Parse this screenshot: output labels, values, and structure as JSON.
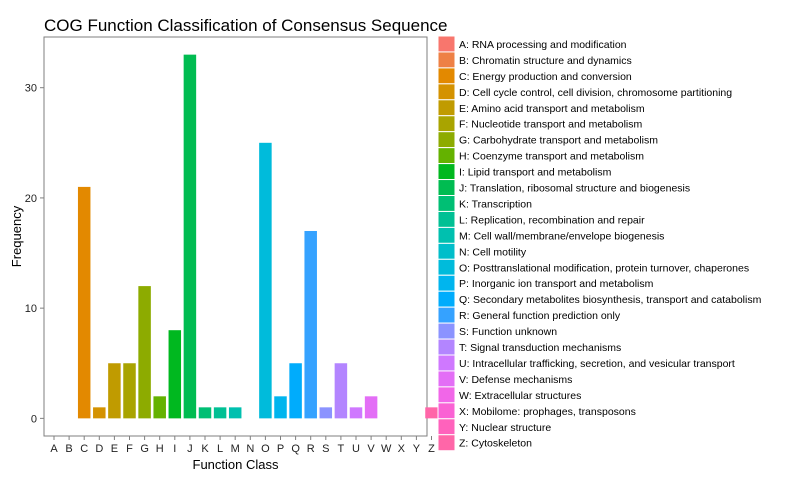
{
  "chart_data": {
    "type": "bar",
    "title": "COG Function Classification of Consensus Sequence",
    "xlabel": "Function Class",
    "ylabel": "Frequency",
    "ylim": [
      -1.6,
      34.6
    ],
    "yticks": [
      0,
      10,
      20,
      30
    ],
    "grid": false,
    "legend_position": "right",
    "categories": [
      "A",
      "B",
      "C",
      "D",
      "E",
      "F",
      "G",
      "H",
      "I",
      "J",
      "K",
      "L",
      "M",
      "N",
      "O",
      "P",
      "Q",
      "R",
      "S",
      "T",
      "U",
      "V",
      "W",
      "X",
      "Y",
      "Z"
    ],
    "values": [
      0,
      0,
      21,
      1,
      5,
      5,
      12,
      2,
      8,
      33,
      1,
      1,
      1,
      0,
      25,
      2,
      5,
      17,
      1,
      5,
      1,
      2,
      0,
      0,
      0,
      1
    ],
    "colors": [
      "#F8766D",
      "#EE8045",
      "#E38900",
      "#D49200",
      "#C09B00",
      "#A9A400",
      "#8DAB00",
      "#64B200",
      "#00B81F",
      "#00BC51",
      "#00BF74",
      "#00C094",
      "#00C0AF",
      "#00BECA",
      "#00BBDB",
      "#00B5EE",
      "#00ACFC",
      "#35A2FF",
      "#8B93FF",
      "#B385FF",
      "#CF78FF",
      "#E36EF6",
      "#F166E8",
      "#FA62D4",
      "#FF62BC",
      "#FF66A8"
    ],
    "legend": [
      "A: RNA processing and modification",
      "B: Chromatin structure and dynamics",
      "C: Energy production and conversion",
      "D: Cell cycle control, cell division, chromosome partitioning",
      "E: Amino acid transport and metabolism",
      "F: Nucleotide transport and metabolism",
      "G: Carbohydrate transport and metabolism",
      "H: Coenzyme transport and metabolism",
      "I: Lipid transport and metabolism",
      "J: Translation, ribosomal structure and biogenesis",
      "K: Transcription",
      "L: Replication, recombination and repair",
      "M: Cell wall/membrane/envelope biogenesis",
      "N: Cell motility",
      "O: Posttranslational modification, protein turnover, chaperones",
      "P: Inorganic ion transport and metabolism",
      "Q: Secondary metabolites biosynthesis, transport and catabolism",
      "R: General function prediction only",
      "S: Function unknown",
      "T: Signal transduction mechanisms",
      "U: Intracellular trafficking, secretion, and vesicular transport",
      "V: Defense mechanisms",
      "W: Extracellular structures",
      "X: Mobilome: prophages, transposons",
      "Y: Nuclear structure",
      "Z: Cytoskeleton"
    ]
  }
}
